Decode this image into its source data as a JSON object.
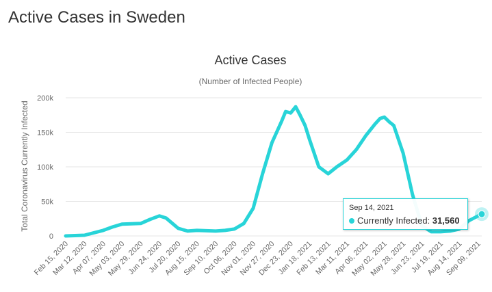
{
  "page": {
    "title": "Active Cases in Sweden"
  },
  "tooltip": {
    "date": "Sep 14, 2021",
    "series_label": "Currently Infected:",
    "value": "31,560"
  },
  "chart_data": {
    "type": "line",
    "title": "Active Cases",
    "subtitle": "(Number of Infected People)",
    "ylabel": "Total Coronavirus Currently Infected",
    "xlabel": "",
    "ylim": [
      0,
      200000
    ],
    "y_ticks": [
      {
        "value": 0,
        "label": "0"
      },
      {
        "value": 50000,
        "label": "50k"
      },
      {
        "value": 100000,
        "label": "100k"
      },
      {
        "value": 150000,
        "label": "150k"
      },
      {
        "value": 200000,
        "label": "200k"
      }
    ],
    "x_tick_labels": [
      "Feb 15, 2020",
      "Mar 12, 2020",
      "Apr 07, 2020",
      "May 03, 2020",
      "May 29, 2020",
      "Jun 24, 2020",
      "Jul 20, 2020",
      "Aug 15, 2020",
      "Sep 10, 2020",
      "Oct 06, 2020",
      "Nov 01, 2020",
      "Nov 27, 2020",
      "Dec 23, 2020",
      "Jan 18, 2021",
      "Feb 13, 2021",
      "Mar 11, 2021",
      "Apr 06, 2021",
      "May 02, 2021",
      "May 28, 2021",
      "Jun 23, 2021",
      "Jul 19, 2021",
      "Aug 14, 2021",
      "Sep 09, 2021"
    ],
    "grid": true,
    "legend": "none",
    "color": "#28d4d8",
    "series": [
      {
        "x": [
          "Feb 15, 2020",
          "Mar 12, 2020",
          "Apr 07, 2020",
          "Apr 20, 2020",
          "May 03, 2020",
          "May 29, 2020",
          "Jun 11, 2020",
          "Jun 24, 2020",
          "Jul 03, 2020",
          "Jul 20, 2020",
          "Aug 02, 2020",
          "Aug 15, 2020",
          "Sep 10, 2020",
          "Sep 23, 2020",
          "Oct 06, 2020",
          "Oct 19, 2020",
          "Nov 01, 2020",
          "Nov 14, 2020",
          "Nov 27, 2020",
          "Dec 10, 2020",
          "Dec 16, 2020",
          "Dec 23, 2020",
          "Dec 30, 2020",
          "Jan 05, 2021",
          "Jan 12, 2021",
          "Jan 18, 2021",
          "Jan 31, 2021",
          "Feb 13, 2021",
          "Feb 25, 2021",
          "Mar 11, 2021",
          "Mar 24, 2021",
          "Apr 06, 2021",
          "Apr 19, 2021",
          "Apr 26, 2021",
          "May 02, 2021",
          "May 09, 2021",
          "May 15, 2021",
          "May 28, 2021",
          "Jun 10, 2021",
          "Jun 23, 2021",
          "Jul 06, 2021",
          "Jul 19, 2021",
          "Aug 01, 2021",
          "Aug 14, 2021",
          "Aug 27, 2021",
          "Sep 09, 2021",
          "Sep 14, 2021"
        ],
        "values": [
          0,
          1000,
          8000,
          13000,
          17000,
          18000,
          24000,
          29000,
          26000,
          11000,
          7000,
          8000,
          7000,
          8000,
          10000,
          18000,
          40000,
          90000,
          135000,
          165000,
          180000,
          178000,
          187000,
          175000,
          160000,
          140000,
          100000,
          90000,
          100000,
          110000,
          125000,
          145000,
          162000,
          170000,
          172000,
          165000,
          160000,
          120000,
          60000,
          15000,
          6000,
          6000,
          7000,
          10000,
          22000,
          29000,
          31560
        ]
      }
    ]
  }
}
